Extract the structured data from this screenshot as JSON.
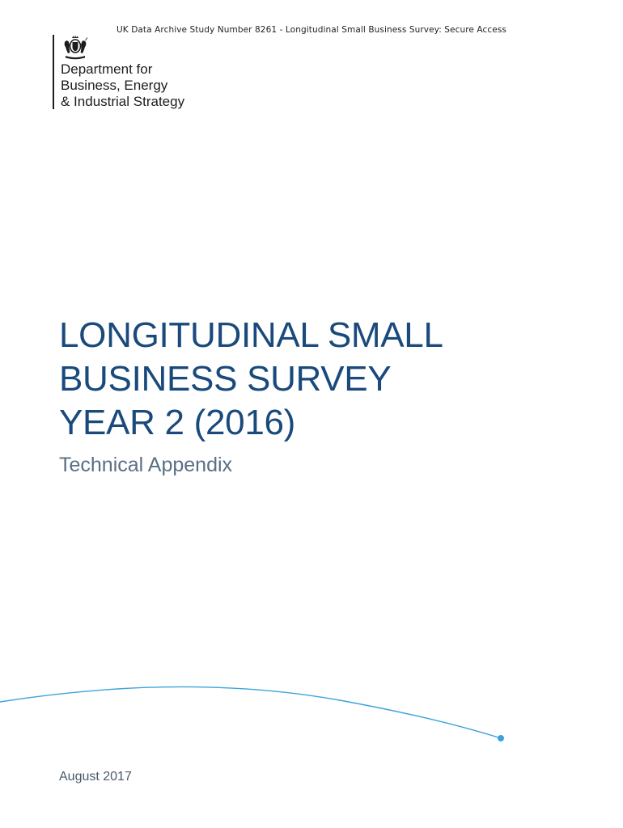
{
  "header": {
    "archive_line": "UK Data Archive Study Number 8261 - Longitudinal Small Business Survey: Secure Access"
  },
  "logo": {
    "icon": "royal-coat-of-arms-icon",
    "lines": [
      "Department for",
      "Business, Energy",
      "& Industrial Strategy"
    ]
  },
  "title": {
    "lines": [
      "LONGITUDINAL SMALL",
      "BUSINESS SURVEY",
      "YEAR 2 (2016)"
    ],
    "subtitle": "Technical Appendix"
  },
  "footer": {
    "date": "August 2017"
  },
  "colors": {
    "title": "#1a4a7c",
    "subtitle": "#5a6f84",
    "arc": "#3ba3dc",
    "logo_text": "#1d1d1b"
  }
}
